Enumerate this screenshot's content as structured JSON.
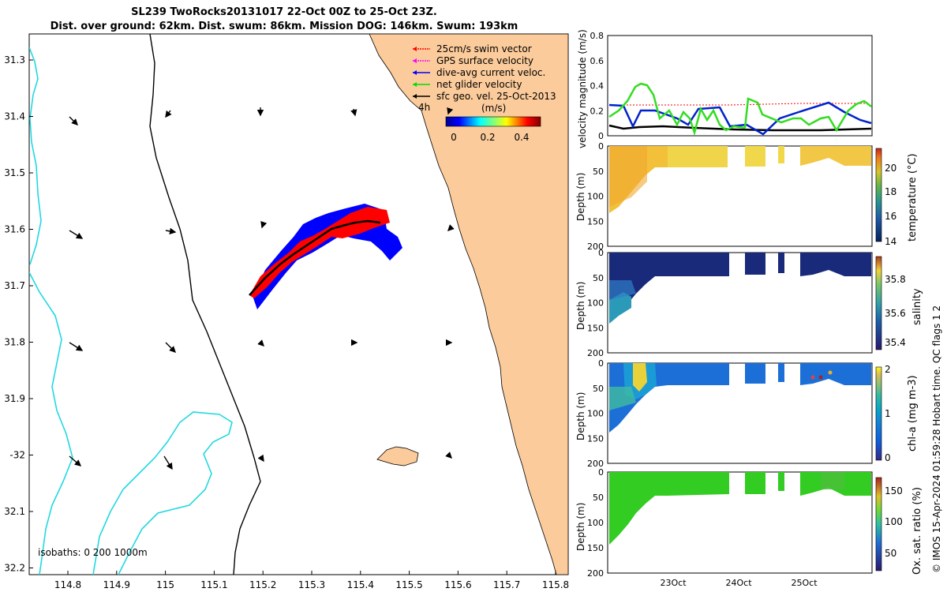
{
  "title": {
    "line1": "SL239 TwoRocks20131017 22-Oct 00Z to 25-Oct 23Z.",
    "line2": "Dist. over ground: 62km. Dist. swum: 86km. Mission DOG: 146km. Swum: 193km"
  },
  "map": {
    "lat_ticks": [
      "31.3",
      "31.4",
      "31.5",
      "31.6",
      "31.7",
      "31.8",
      "31.9",
      "-32",
      "32.1",
      "32.2"
    ],
    "lon_ticks": [
      "114.8",
      "114.9",
      "115",
      "115.1",
      "115.2",
      "115.3",
      "115.4",
      "115.5",
      "115.6",
      "115.7",
      "115.8"
    ],
    "legend": [
      {
        "label": "25cm/s swim vector",
        "color": "#ff0000"
      },
      {
        "label": "GPS surface velocity",
        "color": "#ff00ff"
      },
      {
        "label": "dive-avg current veloc.",
        "color": "#0000ff"
      },
      {
        "label": "net glider velocity",
        "color": "#00e000"
      },
      {
        "label": "sfc geo. vel. 25-Oct-2013",
        "color": "#000000"
      }
    ],
    "legend_4h": "4h",
    "colorbar_title": "(m/s)",
    "colorbar_ticks": [
      "0",
      "0.2",
      "0.4"
    ],
    "isobaths_label": "isobaths: 0   200  1000m",
    "colors": {
      "land": "#fbcb9b",
      "isobath200": "#000000",
      "isobath1000": "#22d8e0",
      "track_red": "#ff0000",
      "track_blue": "#0000ff"
    }
  },
  "panels": {
    "velocity": {
      "ylabel": "velocity magnitude (m/s)",
      "yticks": [
        "0",
        "0.2",
        "0.4",
        "0.6",
        "0.8"
      ],
      "series_colors": {
        "net": "#33dd22",
        "current": "#0022cc",
        "geo": "#000000",
        "swim": "#ff0000"
      }
    },
    "temperature": {
      "ylabel": "Depth (m)",
      "cbar_label": "temperature (°C)",
      "cbar_ticks": [
        "14",
        "16",
        "18",
        "20"
      ],
      "yticks": [
        "0",
        "50",
        "100",
        "150",
        "200"
      ]
    },
    "salinity": {
      "ylabel": "Depth (m)",
      "cbar_label": "salinity",
      "cbar_ticks": [
        "35.4",
        "35.6",
        "35.8"
      ],
      "yticks": [
        "0",
        "50",
        "100",
        "150",
        "200"
      ]
    },
    "chla": {
      "ylabel": "Depth (m)",
      "cbar_label": "chl-a (mg m-3)",
      "cbar_ticks": [
        "0",
        "1",
        "2"
      ],
      "yticks": [
        "0",
        "50",
        "100",
        "150",
        "200"
      ]
    },
    "oxygen": {
      "ylabel": "Depth (m)",
      "cbar_label": "Ox. sat. ratio (%)",
      "cbar_ticks": [
        "50",
        "100",
        "150"
      ],
      "yticks": [
        "0",
        "50",
        "100",
        "150",
        "200"
      ]
    },
    "xticks": [
      "23Oct",
      "24Oct",
      "25Oct"
    ]
  },
  "credit": "© IMOS 15-Apr-2024 01:59:28 Hobart time. QC flags 1  2"
}
